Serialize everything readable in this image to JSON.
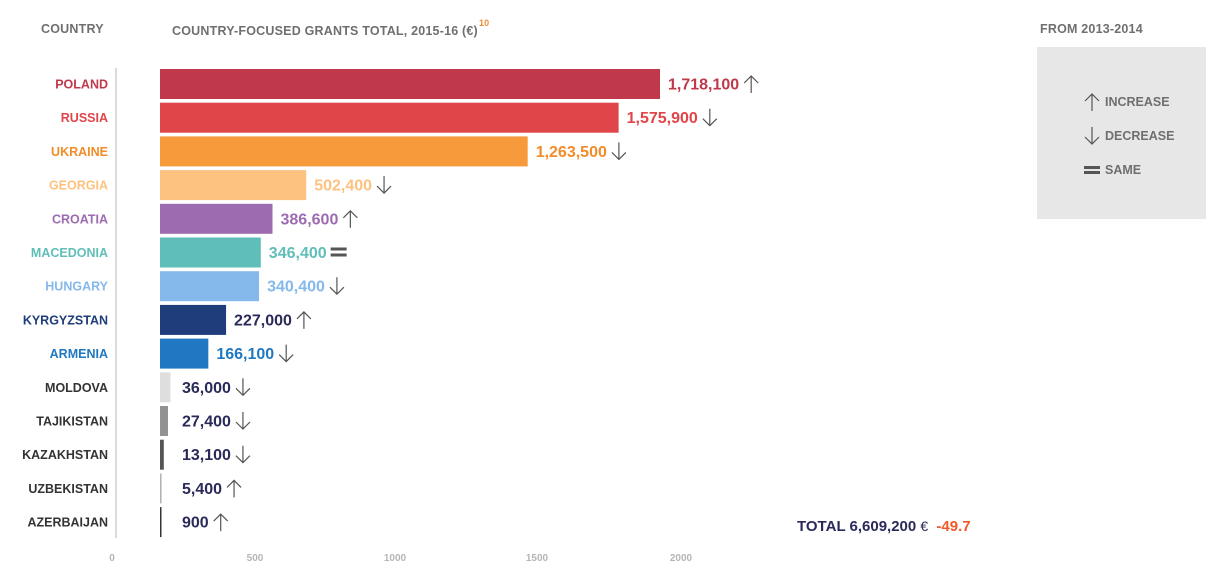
{
  "header": {
    "country_label": "COUNTRY",
    "grants_label": "COUNTRY-FOCUSED GRANTS TOTAL, 2015-16 (€)",
    "footnote": "10",
    "from_label": "FROM 2013-2014"
  },
  "legend": {
    "increase": "INCREASE",
    "decrease": "DECREASE",
    "same": "SAME"
  },
  "total": {
    "label": "TOTAL",
    "value": "6,609,200",
    "currency": "€",
    "change": "-49.7"
  },
  "colors": {
    "dark_label": "#2a2a5a",
    "gray_text": "#6f6f6f",
    "legend_bg": "#e7e7e7",
    "axis_gray": "#b5b5b5"
  },
  "chart_data": {
    "type": "bar",
    "orientation": "horizontal",
    "title": "COUNTRY-FOCUSED GRANTS TOTAL, 2015-16 (€)",
    "categories": [
      "POLAND",
      "RUSSIA",
      "UKRAINE",
      "GEORGIA",
      "CROATIA",
      "MACEDONIA",
      "HUNGARY",
      "KYRGYZSTAN",
      "ARMENIA",
      "MOLDOVA",
      "TAJIKISTAN",
      "KAZAKHSTAN",
      "UZBEKISTAN",
      "AZERBAIJAN"
    ],
    "values": [
      1718100,
      1575900,
      1263500,
      502400,
      386600,
      346400,
      340400,
      227000,
      166100,
      36000,
      27400,
      13100,
      5400,
      900
    ],
    "value_labels": [
      "1,718,100",
      "1,575,900",
      "1,263,500",
      "502,400",
      "386,600",
      "346,400",
      "340,400",
      "227,000",
      "166,100",
      "36,000",
      "27,400",
      "13,100",
      "5,400",
      "900"
    ],
    "change_from_2013_2014": [
      "increase",
      "decrease",
      "decrease",
      "decrease",
      "increase",
      "same",
      "decrease",
      "increase",
      "decrease",
      "decrease",
      "decrease",
      "decrease",
      "increase",
      "increase"
    ],
    "bar_colors": [
      "#c0394a",
      "#e0454a",
      "#f79a3b",
      "#fdc27f",
      "#9c6bb0",
      "#5fbfb8",
      "#85b8eb",
      "#1f3d7a",
      "#1f78c1",
      "#dedede",
      "#929292",
      "#555555",
      "#b3b3b3",
      "#333333"
    ],
    "label_colors": [
      "#c0394a",
      "#e0454a",
      "#f28c28",
      "#fdc27f",
      "#9c6bb0",
      "#5fbfb8",
      "#85b8eb",
      "#1f3d7a",
      "#1f78c1",
      "#333333",
      "#333333",
      "#333333",
      "#333333",
      "#333333"
    ],
    "value_label_colors": [
      "#c0394a",
      "#e0454a",
      "#f28c28",
      "#fdc27f",
      "#9c6bb0",
      "#5fbfb8",
      "#85b8eb",
      "#2a2a5a",
      "#1f78c1",
      "#2a2a5a",
      "#2a2a5a",
      "#2a2a5a",
      "#2a2a5a",
      "#2a2a5a"
    ],
    "xaxis_ticks": [
      "0",
      "500",
      "1000",
      "1500",
      "2000"
    ],
    "xaxis_tick_values": [
      0,
      500,
      1000,
      1500,
      2000
    ],
    "grid": false
  }
}
